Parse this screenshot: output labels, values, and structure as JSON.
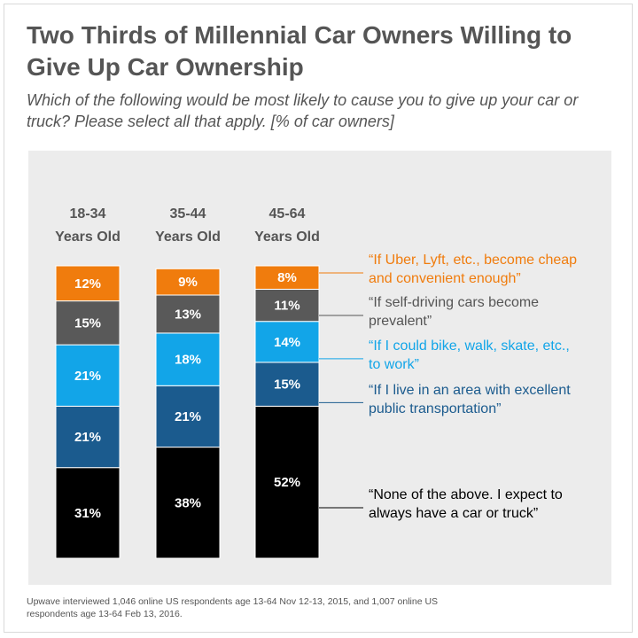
{
  "title": "Two Thirds of Millennial Car Owners Willing to Give Up Car Ownership",
  "subtitle": "Which of the following would be most likely to cause you to give up your car or truck? Please select all that apply. [% of car owners]",
  "footnote": "Upwave interviewed 1,046 online US respondents age 13-64 Nov 12-13, 2015, and 1,007 online US respondents age 13-64 Feb 13, 2016.",
  "chart_data": {
    "type": "bar",
    "stacked": true,
    "categories": [
      [
        "18-34",
        "Years Old"
      ],
      [
        "35-44",
        "Years Old"
      ],
      [
        "45-64",
        "Years Old"
      ]
    ],
    "series": [
      {
        "name": "“None of the above. I expect to always have a car or truck”",
        "color": "#000000",
        "values": [
          31,
          38,
          52
        ],
        "labels": [
          "31%",
          "38%",
          "52%"
        ]
      },
      {
        "name": "“If I live in an area with excellent public transportation”",
        "color": "#1b5b8e",
        "values": [
          21,
          21,
          15
        ],
        "labels": [
          "21%",
          "21%",
          "15%"
        ]
      },
      {
        "name": "“If I could bike, walk, skate, etc., to work”",
        "color": "#12a5e8",
        "values": [
          21,
          18,
          14
        ],
        "labels": [
          "21%",
          "18%",
          "14%"
        ]
      },
      {
        "name": "“If self-driving cars become prevalent”",
        "color": "#595959",
        "values": [
          15,
          13,
          11
        ],
        "labels": [
          "15%",
          "13%",
          "11%"
        ]
      },
      {
        "name": "“If Uber, Lyft, etc., become cheap and convenient enough”",
        "color": "#f07c0d",
        "values": [
          12,
          9,
          8
        ],
        "labels": [
          "12%",
          "9%",
          "8%"
        ]
      }
    ],
    "legend": [
      {
        "lines": [
          "“If Uber, Lyft, etc., become cheap",
          "and convenient enough”"
        ],
        "color": "#f07c0d"
      },
      {
        "lines": [
          "“If self-driving cars become",
          "prevalent”"
        ],
        "color": "#555555"
      },
      {
        "lines": [
          "“If I could bike, walk, skate, etc.,",
          "to work”"
        ],
        "color": "#12a5e8"
      },
      {
        "lines": [
          "“If I live in an area with excellent",
          "public transportation”"
        ],
        "color": "#1b5b8e"
      },
      {
        "lines": [
          "“None of the above. I expect to",
          "always have a car or truck”"
        ],
        "color": "#000000"
      }
    ],
    "legend_position": "right",
    "grid": false
  }
}
